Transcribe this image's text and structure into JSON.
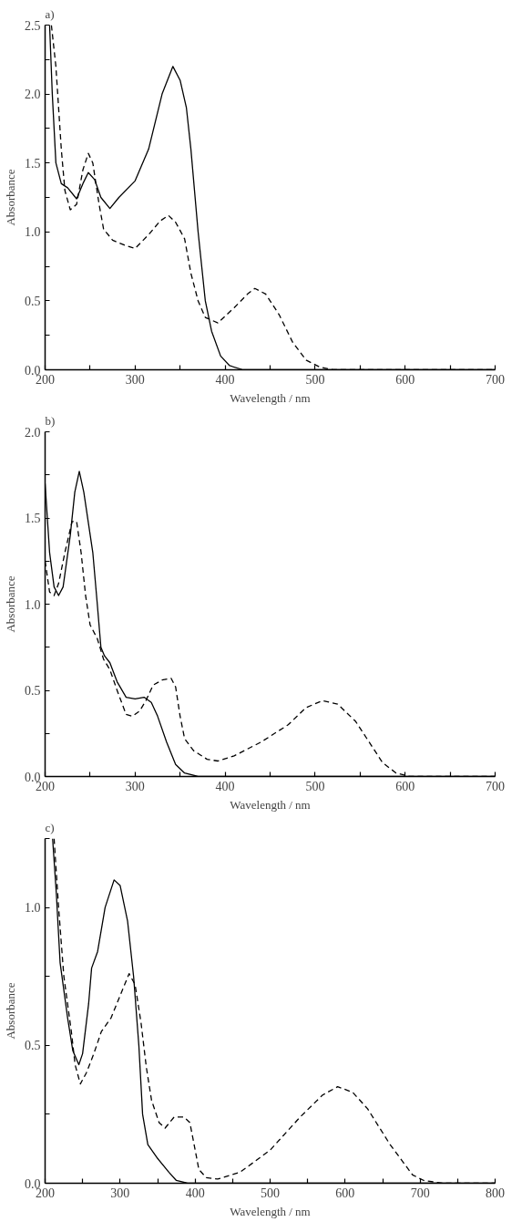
{
  "chart_data": [
    {
      "type": "line",
      "title": "a)",
      "xlabel": "Wavelength / nm",
      "ylabel": "Absorbance",
      "grid": false,
      "xlim": [
        200,
        700
      ],
      "ylim": [
        0,
        2.5
      ],
      "xticks": [
        200,
        {
          "value": 250,
          "label": null
        },
        300,
        {
          "value": 350,
          "label": null
        },
        400,
        {
          "value": 450,
          "label": null
        },
        500,
        {
          "value": 550,
          "label": null
        },
        600,
        {
          "value": 650,
          "label": null
        },
        700
      ],
      "yticks": [
        {
          "value": 0,
          "label": "0.0"
        },
        {
          "value": 0.25,
          "label": null
        },
        {
          "value": 0.5,
          "label": "0.5"
        },
        {
          "value": 0.75,
          "label": null
        },
        {
          "value": 1.0,
          "label": "1.0"
        },
        {
          "value": 1.25,
          "label": null
        },
        {
          "value": 1.5,
          "label": "1.5"
        },
        {
          "value": 1.75,
          "label": null
        },
        {
          "value": 2.0,
          "label": "2.0"
        },
        {
          "value": 2.25,
          "label": null
        },
        {
          "value": 2.5,
          "label": "2.5"
        }
      ],
      "series": [
        {
          "color": "#000000",
          "line_style": "solid",
          "x": [
            205,
            208,
            212,
            218,
            225,
            235,
            242,
            248,
            255,
            262,
            272,
            282,
            300,
            315,
            330,
            342,
            350,
            357,
            362,
            370,
            378,
            385,
            395,
            405,
            420,
            500,
            700
          ],
          "values": [
            2.5,
            2.0,
            1.5,
            1.35,
            1.32,
            1.24,
            1.35,
            1.43,
            1.38,
            1.25,
            1.17,
            1.25,
            1.37,
            1.6,
            2.0,
            2.2,
            2.1,
            1.9,
            1.6,
            1.0,
            0.5,
            0.28,
            0.1,
            0.03,
            0.0,
            0.0,
            0.0
          ]
        },
        {
          "color": "#000000",
          "line_style": "dashed",
          "x": [
            207,
            212,
            218,
            222,
            228,
            235,
            242,
            248,
            253,
            260,
            265,
            275,
            290,
            300,
            315,
            328,
            337,
            345,
            355,
            362,
            370,
            378,
            392,
            410,
            425,
            433,
            445,
            460,
            475,
            490,
            505,
            520,
            700
          ],
          "values": [
            2.5,
            2.2,
            1.6,
            1.3,
            1.16,
            1.2,
            1.45,
            1.57,
            1.5,
            1.2,
            1.02,
            0.94,
            0.9,
            0.88,
            0.98,
            1.08,
            1.12,
            1.07,
            0.95,
            0.7,
            0.5,
            0.38,
            0.34,
            0.45,
            0.55,
            0.59,
            0.55,
            0.4,
            0.2,
            0.07,
            0.02,
            0.0,
            0.0
          ]
        }
      ]
    },
    {
      "type": "line",
      "title": "b)",
      "xlabel": "Wavelength / nm",
      "ylabel": "Absorbance",
      "grid": false,
      "xlim": [
        200,
        700
      ],
      "ylim": [
        0,
        2.0
      ],
      "xticks": [
        200,
        {
          "value": 250,
          "label": null
        },
        300,
        {
          "value": 350,
          "label": null
        },
        400,
        {
          "value": 450,
          "label": null
        },
        500,
        {
          "value": 550,
          "label": null
        },
        600,
        {
          "value": 650,
          "label": null
        },
        700
      ],
      "yticks": [
        {
          "value": 0,
          "label": "0.0"
        },
        {
          "value": 0.25,
          "label": null
        },
        {
          "value": 0.5,
          "label": "0.5"
        },
        {
          "value": 0.75,
          "label": null
        },
        {
          "value": 1.0,
          "label": "1.0"
        },
        {
          "value": 1.25,
          "label": null
        },
        {
          "value": 1.5,
          "label": "1.5"
        },
        {
          "value": 1.75,
          "label": null
        },
        {
          "value": 2.0,
          "label": "2.0"
        }
      ],
      "series": [
        {
          "color": "#000000",
          "line_style": "solid",
          "x": [
            200,
            205,
            210,
            215,
            220,
            228,
            233,
            238,
            243,
            253,
            258,
            262,
            266,
            272,
            280,
            290,
            300,
            310,
            318,
            325,
            335,
            345,
            355,
            370,
            700
          ],
          "values": [
            1.7,
            1.3,
            1.1,
            1.05,
            1.1,
            1.4,
            1.65,
            1.77,
            1.65,
            1.3,
            1.0,
            0.75,
            0.7,
            0.66,
            0.55,
            0.46,
            0.45,
            0.46,
            0.43,
            0.35,
            0.2,
            0.07,
            0.02,
            0.0,
            0.0
          ]
        },
        {
          "color": "#000000",
          "line_style": "dashed",
          "x": [
            200,
            205,
            210,
            215,
            222,
            230,
            235,
            240,
            245,
            250,
            258,
            265,
            272,
            280,
            290,
            297,
            305,
            312,
            320,
            330,
            340,
            345,
            350,
            355,
            365,
            380,
            392,
            410,
            440,
            470,
            490,
            508,
            525,
            545,
            560,
            575,
            590,
            605,
            700
          ],
          "values": [
            1.25,
            1.07,
            1.05,
            1.12,
            1.3,
            1.48,
            1.48,
            1.3,
            1.05,
            0.88,
            0.8,
            0.68,
            0.62,
            0.5,
            0.36,
            0.35,
            0.38,
            0.44,
            0.53,
            0.56,
            0.57,
            0.52,
            0.35,
            0.22,
            0.15,
            0.1,
            0.09,
            0.12,
            0.2,
            0.3,
            0.4,
            0.44,
            0.42,
            0.32,
            0.2,
            0.08,
            0.02,
            0.0,
            0.0
          ]
        }
      ]
    },
    {
      "type": "line",
      "title": "c)",
      "xlabel": "Wavelength / nm",
      "ylabel": "Absorbance",
      "grid": false,
      "xlim": [
        200,
        800
      ],
      "ylim": [
        0,
        1.25
      ],
      "xticks": [
        200,
        {
          "value": 250,
          "label": null
        },
        300,
        {
          "value": 350,
          "label": null
        },
        400,
        {
          "value": 450,
          "label": null
        },
        500,
        {
          "value": 550,
          "label": null
        },
        600,
        {
          "value": 650,
          "label": null
        },
        700,
        {
          "value": 750,
          "label": null
        },
        800
      ],
      "yticks": [
        {
          "value": 0,
          "label": "0.0"
        },
        {
          "value": 0.25,
          "label": null
        },
        {
          "value": 0.5,
          "label": "0.5"
        },
        {
          "value": 0.75,
          "label": null
        },
        {
          "value": 1.0,
          "label": "1.0"
        },
        {
          "value": 1.25,
          "label": null
        }
      ],
      "series": [
        {
          "color": "#000000",
          "line_style": "solid",
          "x": [
            210,
            215,
            220,
            230,
            237,
            245,
            250,
            258,
            262,
            270,
            280,
            292,
            300,
            310,
            318,
            325,
            330,
            337,
            350,
            365,
            375,
            390,
            800
          ],
          "values": [
            1.25,
            1.05,
            0.8,
            0.6,
            0.48,
            0.43,
            0.47,
            0.65,
            0.78,
            0.84,
            1.0,
            1.1,
            1.08,
            0.95,
            0.75,
            0.5,
            0.25,
            0.14,
            0.09,
            0.04,
            0.01,
            0.0,
            0.0
          ]
        },
        {
          "color": "#000000",
          "line_style": "dashed",
          "x": [
            212,
            218,
            225,
            235,
            240,
            247,
            255,
            265,
            275,
            288,
            300,
            312,
            320,
            328,
            335,
            342,
            352,
            360,
            372,
            385,
            393,
            398,
            405,
            415,
            430,
            460,
            500,
            540,
            570,
            590,
            610,
            630,
            660,
            690,
            705,
            730,
            800
          ],
          "values": [
            1.25,
            1.0,
            0.75,
            0.55,
            0.43,
            0.36,
            0.4,
            0.47,
            0.55,
            0.6,
            0.68,
            0.76,
            0.72,
            0.58,
            0.42,
            0.3,
            0.22,
            0.2,
            0.24,
            0.24,
            0.22,
            0.15,
            0.05,
            0.02,
            0.015,
            0.04,
            0.12,
            0.24,
            0.32,
            0.35,
            0.33,
            0.27,
            0.14,
            0.03,
            0.01,
            0.0,
            0.0
          ]
        }
      ]
    }
  ]
}
